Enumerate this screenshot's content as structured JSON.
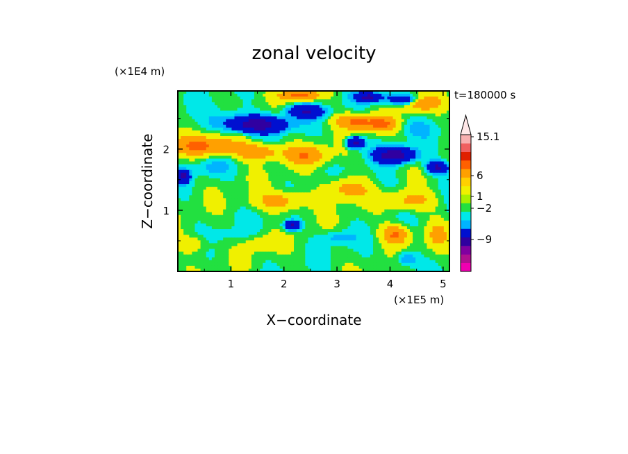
{
  "chart_data": {
    "type": "heatmap",
    "title": "zonal velocity",
    "xlabel": "X−coordinate",
    "ylabel": "Z−coordinate",
    "x_multiplier": "(×1E5 m)",
    "y_multiplier": "(×1E4 m)",
    "time_label": "t=180000 s",
    "xlim": [
      0.0,
      5.12
    ],
    "ylim": [
      0.0,
      2.95
    ],
    "xticks": [
      1,
      2,
      3,
      4,
      5
    ],
    "xtick_labels": [
      "1",
      "2",
      "3",
      "4",
      "5"
    ],
    "yticks": [
      1,
      2
    ],
    "ytick_labels": [
      "1",
      "2"
    ],
    "colorbar": {
      "colors": [
        "#f000b0",
        "#b01090",
        "#8000a0",
        "#3000a0",
        "#0010d0",
        "#00b4ff",
        "#00e8e8",
        "#22e040",
        "#a8f000",
        "#f0f000",
        "#ffd000",
        "#ffa000",
        "#ff6000",
        "#e02000",
        "#f06060",
        "#f8b0b0",
        "#ffe8e8"
      ],
      "tick_labels": [
        "15.1",
        "6",
        "1",
        "−2",
        "−9"
      ],
      "tick_values": [
        15.1,
        6,
        1,
        -2,
        -9
      ],
      "extend_top": true
    },
    "field_description_levels": [
      -12,
      -9,
      -6,
      -2,
      -1,
      0,
      1,
      3,
      6,
      9,
      12,
      15.1
    ],
    "blobs": [
      {
        "cx": 1.5,
        "cz": 2.4,
        "rx": 0.55,
        "rz": 0.13,
        "value": -8
      },
      {
        "cx": 2.4,
        "cz": 2.62,
        "rx": 0.35,
        "rz": 0.1,
        "value": -6
      },
      {
        "cx": 3.6,
        "cz": 2.85,
        "rx": 0.25,
        "rz": 0.08,
        "value": -7
      },
      {
        "cx": 4.25,
        "cz": 2.8,
        "rx": 0.3,
        "rz": 0.08,
        "value": -6
      },
      {
        "cx": 3.35,
        "cz": 2.1,
        "rx": 0.15,
        "rz": 0.09,
        "value": -9
      },
      {
        "cx": 4.1,
        "cz": 1.9,
        "rx": 0.35,
        "rz": 0.12,
        "value": -9
      },
      {
        "cx": 4.9,
        "cz": 1.7,
        "rx": 0.2,
        "rz": 0.1,
        "value": -7
      },
      {
        "cx": 0.1,
        "cz": 1.55,
        "rx": 0.12,
        "rz": 0.1,
        "value": -7
      },
      {
        "cx": 2.15,
        "cz": 0.75,
        "rx": 0.15,
        "rz": 0.08,
        "value": -7
      },
      {
        "cx": 3.0,
        "cz": 0.55,
        "rx": 0.3,
        "rz": 0.12,
        "value": -2
      },
      {
        "cx": 0.6,
        "cz": 1.7,
        "rx": 0.35,
        "rz": 0.15,
        "value": -1.5
      },
      {
        "cx": 1.0,
        "cz": 2.5,
        "rx": 0.5,
        "rz": 0.2,
        "value": -1.5
      },
      {
        "cx": 4.4,
        "cz": 2.35,
        "rx": 0.4,
        "rz": 0.15,
        "value": -1.5
      },
      {
        "cx": 4.3,
        "cz": 0.2,
        "rx": 0.2,
        "rz": 0.12,
        "value": -3
      },
      {
        "cx": 0.5,
        "cz": 2.05,
        "rx": 0.7,
        "rz": 0.15,
        "value": 6
      },
      {
        "cx": 1.5,
        "cz": 1.95,
        "rx": 0.4,
        "rz": 0.12,
        "value": 5
      },
      {
        "cx": 2.4,
        "cz": 1.9,
        "rx": 0.4,
        "rz": 0.15,
        "value": 5
      },
      {
        "cx": 2.3,
        "cz": 2.88,
        "rx": 0.35,
        "rz": 0.08,
        "value": 7
      },
      {
        "cx": 3.35,
        "cz": 2.45,
        "rx": 0.35,
        "rz": 0.12,
        "value": 6
      },
      {
        "cx": 3.85,
        "cz": 2.4,
        "rx": 0.3,
        "rz": 0.12,
        "value": 6
      },
      {
        "cx": 4.6,
        "cz": 2.75,
        "rx": 0.35,
        "rz": 0.12,
        "value": 5
      },
      {
        "cx": 1.95,
        "cz": 1.15,
        "rx": 0.5,
        "rz": 0.15,
        "value": 4
      },
      {
        "cx": 3.2,
        "cz": 1.35,
        "rx": 0.4,
        "rz": 0.18,
        "value": 4
      },
      {
        "cx": 4.4,
        "cz": 1.15,
        "rx": 0.45,
        "rz": 0.15,
        "value": 3.5
      },
      {
        "cx": 4.1,
        "cz": 0.6,
        "rx": 0.25,
        "rz": 0.15,
        "value": 6
      },
      {
        "cx": 0.3,
        "cz": 0.45,
        "rx": 0.3,
        "rz": 0.15,
        "value": 2
      },
      {
        "cx": 1.6,
        "cz": 0.45,
        "rx": 0.3,
        "rz": 0.12,
        "value": 2.5
      },
      {
        "cx": 4.9,
        "cz": 0.6,
        "rx": 0.2,
        "rz": 0.2,
        "value": 3
      },
      {
        "cx": 3.9,
        "cz": 1.45,
        "rx": 0.35,
        "rz": 0.15,
        "value": -0.8
      },
      {
        "cx": 1.0,
        "cz": 0.6,
        "rx": 0.35,
        "rz": 0.12,
        "value": -0.8
      }
    ]
  }
}
